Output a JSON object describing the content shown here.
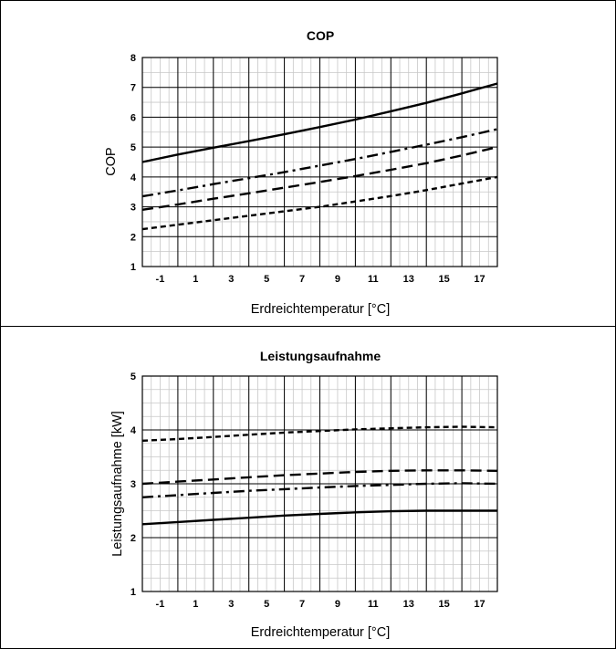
{
  "chart_data": [
    {
      "type": "line",
      "title": "COP",
      "xlabel": "Erdreichtemperatur [°C]",
      "ylabel": "COP",
      "xlim": [
        -2,
        18
      ],
      "ylim": [
        1,
        8
      ],
      "x_ticks": [
        -1,
        1,
        3,
        5,
        7,
        9,
        11,
        13,
        15,
        17
      ],
      "y_ticks": [
        1,
        2,
        3,
        4,
        5,
        6,
        7,
        8
      ],
      "grid": true,
      "x": [
        -2,
        0,
        2,
        4,
        6,
        8,
        10,
        12,
        14,
        16,
        18
      ],
      "series": [
        {
          "style": "solid",
          "values": [
            4.5,
            4.75,
            4.98,
            5.2,
            5.43,
            5.67,
            5.92,
            6.2,
            6.48,
            6.8,
            7.13
          ]
        },
        {
          "style": "dash-dot",
          "values": [
            3.35,
            3.55,
            3.76,
            3.96,
            4.16,
            4.38,
            4.6,
            4.84,
            5.08,
            5.33,
            5.6
          ]
        },
        {
          "style": "dashed",
          "values": [
            2.9,
            3.08,
            3.27,
            3.45,
            3.64,
            3.83,
            4.03,
            4.24,
            4.46,
            4.72,
            5.0
          ]
        },
        {
          "style": "dotted",
          "values": [
            2.25,
            2.4,
            2.55,
            2.7,
            2.85,
            3.0,
            3.18,
            3.36,
            3.56,
            3.78,
            4.0
          ]
        }
      ]
    },
    {
      "type": "line",
      "title": "Leistungsaufnahme",
      "xlabel": "Erdreichtemperatur [°C]",
      "ylabel": "Leistungsaufnahme [kW]",
      "xlim": [
        -2,
        18
      ],
      "ylim": [
        1,
        5
      ],
      "x_ticks": [
        -1,
        1,
        3,
        5,
        7,
        9,
        11,
        13,
        15,
        17
      ],
      "y_ticks": [
        1,
        2,
        3,
        4,
        5
      ],
      "grid": true,
      "x": [
        -2,
        0,
        2,
        4,
        6,
        8,
        10,
        12,
        14,
        16,
        18
      ],
      "series": [
        {
          "style": "dotted",
          "values": [
            3.8,
            3.83,
            3.87,
            3.91,
            3.95,
            3.98,
            4.01,
            4.03,
            4.05,
            4.06,
            4.05
          ]
        },
        {
          "style": "dashed",
          "values": [
            3.0,
            3.04,
            3.08,
            3.12,
            3.16,
            3.19,
            3.22,
            3.24,
            3.25,
            3.25,
            3.24
          ]
        },
        {
          "style": "dash-dot",
          "values": [
            2.75,
            2.79,
            2.83,
            2.87,
            2.9,
            2.93,
            2.96,
            2.98,
            3.0,
            3.01,
            3.0
          ]
        },
        {
          "style": "solid",
          "values": [
            2.25,
            2.29,
            2.33,
            2.37,
            2.41,
            2.44,
            2.47,
            2.49,
            2.5,
            2.5,
            2.5
          ]
        }
      ]
    }
  ]
}
